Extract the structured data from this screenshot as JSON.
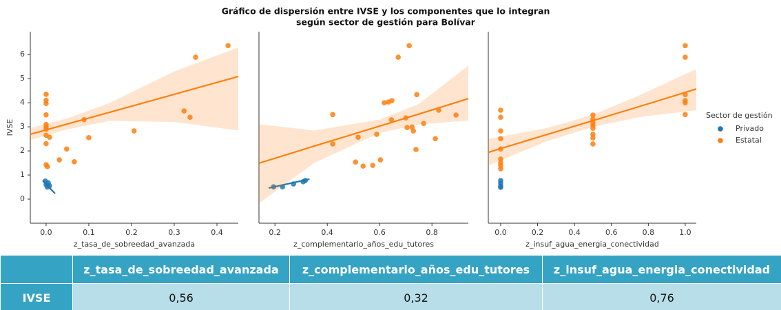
{
  "title": [
    "Gráfico de dispersión entre IVSE y los componentes que lo integran",
    "según sector de gestión para Bolívar"
  ],
  "legend_title": "Sector de gestión",
  "chart_data": [
    {
      "type": "scatter",
      "x_label": "z_tasa_de_sobreedad_avanzada",
      "y_label": "IVSE",
      "xlim": [
        -0.037,
        0.45
      ],
      "xticks": [
        {
          "value": 0,
          "label": "0.0"
        },
        0.1,
        0.2,
        0.3,
        0.4
      ],
      "ylim": [
        -1.0,
        6.95
      ],
      "yticks": [
        0,
        1,
        2,
        3,
        4,
        5,
        6
      ],
      "series": [
        {
          "color": "#1f77b4",
          "x": [
            -0.002,
            0,
            0.003,
            0.005,
            0.008
          ],
          "values": [
            0.75,
            0.6,
            0.5,
            0.68,
            0.55
          ],
          "fit": {
            "x": [
              -0.008,
              0.021
            ],
            "values": [
              0.77,
              0.23
            ]
          }
        },
        {
          "color": "#ff7f0e",
          "x": [
            0,
            0,
            0,
            0,
            0,
            0,
            0,
            0,
            0,
            0,
            0.003,
            0.008,
            0.031,
            0.048,
            0.066,
            0.089,
            0.1,
            0.206,
            0.323,
            0.337,
            0.35,
            0.426
          ],
          "values": [
            4.35,
            4.1,
            3.97,
            3.5,
            3.1,
            3.0,
            2.9,
            2.65,
            2.3,
            1.43,
            1.35,
            2.57,
            1.63,
            2.08,
            1.55,
            3.3,
            2.55,
            2.83,
            3.66,
            3.4,
            5.89,
            6.37
          ],
          "fit": {
            "x": [
              -0.037,
              0.05,
              0.15,
              0.3,
              0.45
            ],
            "values": [
              2.69,
              3.12,
              3.61,
              4.35,
              5.09
            ],
            "lower": [
              2.45,
              2.9,
              3.25,
              3.2,
              2.85
            ],
            "upper": [
              2.95,
              3.35,
              4.0,
              5.3,
              6.3
            ]
          }
        }
      ]
    },
    {
      "type": "scatter",
      "x_label": "z_complementario_años_edu_tutores",
      "xlim": [
        0.139,
        0.939
      ],
      "xticks": [
        0.2,
        0.4,
        0.6,
        0.8
      ],
      "ylim": [
        -1.0,
        6.95
      ],
      "series": [
        {
          "color": "#1f77b4",
          "x": [
            0.195,
            0.229,
            0.271,
            0.308,
            0.316
          ],
          "values": [
            0.51,
            0.51,
            0.63,
            0.72,
            0.77
          ],
          "fit": {
            "x": [
              0.176,
              0.332
            ],
            "values": [
              0.46,
              0.83
            ]
          }
        },
        {
          "color": "#ff7f0e",
          "x": [
            0.421,
            0.421,
            0.518,
            0.508,
            0.537,
            0.574,
            0.589,
            0.603,
            0.618,
            0.634,
            0.647,
            0.645,
            0.671,
            0.7,
            0.705,
            0.713,
            0.724,
            0.729,
            0.742,
            0.739,
            0.768,
            0.813,
            0.826,
            0.892
          ],
          "values": [
            3.51,
            2.29,
            2.57,
            1.54,
            1.37,
            1.4,
            2.69,
            1.63,
            4.0,
            4.03,
            4.09,
            3.29,
            5.89,
            3.37,
            2.97,
            6.37,
            2.99,
            2.83,
            4.34,
            2.06,
            3.14,
            2.51,
            3.69,
            3.49
          ],
          "fit": {
            "x": [
              0.139,
              0.35,
              0.6,
              0.75,
              0.939
            ],
            "values": [
              1.49,
              2.2,
              3.03,
              3.53,
              4.17
            ],
            "lower": [
              -0.17,
              1.5,
              2.75,
              3.1,
              3.26
            ],
            "upper": [
              3.11,
              2.85,
              3.3,
              3.95,
              5.54
            ]
          }
        }
      ]
    },
    {
      "type": "scatter",
      "x_label": "z_insuf_agua_energia_conectividad",
      "xlim": [
        -0.067,
        1.06
      ],
      "xticks": [
        {
          "value": 0,
          "label": "0.0"
        },
        0.2,
        0.4,
        0.6,
        0.8,
        {
          "value": 1,
          "label": "1.0"
        }
      ],
      "ylim": [
        -1.0,
        6.95
      ],
      "series": [
        {
          "name": "Privado",
          "color": "#1f77b4",
          "x": [
            0,
            0,
            0,
            0
          ],
          "values": [
            0.77,
            0.66,
            0.54,
            0.49
          ]
        },
        {
          "name": "Estatal",
          "color": "#ff7f0e",
          "x": [
            0,
            0,
            0,
            0,
            0,
            0,
            0,
            0,
            0,
            0.5,
            0.5,
            0.5,
            0.5,
            0.5,
            0.5,
            0.5,
            0.5,
            1,
            1,
            1,
            1,
            1,
            1
          ],
          "values": [
            3.69,
            3.4,
            2.83,
            2.51,
            2.08,
            1.66,
            1.51,
            1.4,
            1.26,
            3.49,
            3.31,
            3.17,
            3.06,
            2.94,
            2.69,
            2.54,
            2.29,
            6.37,
            5.89,
            4.34,
            4.09,
            4.0,
            3.51
          ],
          "fit": {
            "x": [
              -0.067,
              0.25,
              0.5,
              0.75,
              1.06
            ],
            "values": [
              1.94,
              2.68,
              3.26,
              3.84,
              4.57
            ],
            "lower": [
              1.4,
              2.4,
              3.0,
              3.4,
              3.69
            ],
            "upper": [
              2.5,
              2.95,
              3.5,
              4.3,
              5.4
            ]
          }
        }
      ]
    }
  ],
  "table": {
    "columns": [
      "z_tasa_de_sobreedad_avanzada",
      "z_complementario_años_edu_tutores",
      "z_insuf_agua_energia_conectividad"
    ],
    "rows": [
      {
        "label": "IVSE",
        "values": [
          "0,56",
          "0,32",
          "0,76"
        ]
      }
    ]
  }
}
